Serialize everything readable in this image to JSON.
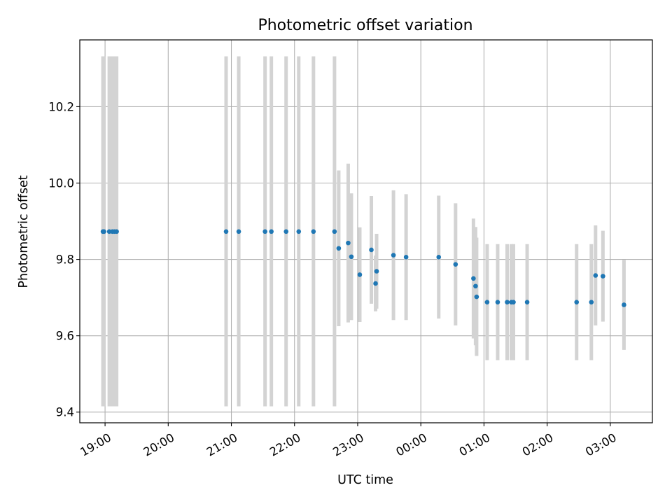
{
  "chart_data": {
    "type": "scatter",
    "title": "Photometric offset variation",
    "xlabel": "UTC time",
    "ylabel": "Photometric offset",
    "grid": true,
    "x_is_time": true,
    "x_range": [
      "18:36",
      "03:40"
    ],
    "ylim": [
      9.372,
      10.375
    ],
    "x_ticks": [
      "19:00",
      "20:00",
      "21:00",
      "22:00",
      "23:00",
      "00:00",
      "01:00",
      "02:00",
      "03:00"
    ],
    "y_ticks": [
      9.4,
      9.6,
      9.8,
      10.0,
      10.2
    ],
    "y_tick_labels": [
      "9.4",
      "9.6",
      "9.8",
      "10.0",
      "10.2"
    ],
    "colors": {
      "points": "#1f77b4",
      "errorbars": "#d3d3d3",
      "grid": "#b0b0b0"
    },
    "series": [
      {
        "points": [
          {
            "t": "18:58",
            "y": 9.873,
            "lo": 9.415,
            "hi": 10.332
          },
          {
            "t": "18:59",
            "y": 9.873,
            "lo": 9.415,
            "hi": 10.332
          },
          {
            "t": "19:04",
            "y": 9.873,
            "lo": 9.415,
            "hi": 10.332
          },
          {
            "t": "19:07",
            "y": 9.873,
            "lo": 9.415,
            "hi": 10.332
          },
          {
            "t": "19:09",
            "y": 9.873,
            "lo": 9.415,
            "hi": 10.332
          },
          {
            "t": "19:11",
            "y": 9.873,
            "lo": 9.415,
            "hi": 10.332
          },
          {
            "t": "20:55",
            "y": 9.873,
            "lo": 9.415,
            "hi": 10.332
          },
          {
            "t": "21:07",
            "y": 9.873,
            "lo": 9.415,
            "hi": 10.332
          },
          {
            "t": "21:32",
            "y": 9.873,
            "lo": 9.415,
            "hi": 10.332
          },
          {
            "t": "21:38",
            "y": 9.873,
            "lo": 9.415,
            "hi": 10.332
          },
          {
            "t": "21:52",
            "y": 9.873,
            "lo": 9.415,
            "hi": 10.332
          },
          {
            "t": "22:04",
            "y": 9.873,
            "lo": 9.415,
            "hi": 10.332
          },
          {
            "t": "22:18",
            "y": 9.873,
            "lo": 9.415,
            "hi": 10.332
          },
          {
            "t": "22:38",
            "y": 9.873,
            "lo": 9.415,
            "hi": 10.332
          },
          {
            "t": "22:42",
            "y": 9.829,
            "lo": 9.625,
            "hi": 10.033
          },
          {
            "t": "22:51",
            "y": 9.843,
            "lo": 9.635,
            "hi": 10.051
          },
          {
            "t": "22:54",
            "y": 9.807,
            "lo": 9.641,
            "hi": 9.973
          },
          {
            "t": "23:02",
            "y": 9.76,
            "lo": 9.636,
            "hi": 9.884
          },
          {
            "t": "23:13",
            "y": 9.825,
            "lo": 9.684,
            "hi": 9.966
          },
          {
            "t": "23:17",
            "y": 9.737,
            "lo": 9.664,
            "hi": 9.81
          },
          {
            "t": "23:18",
            "y": 9.769,
            "lo": 9.671,
            "hi": 9.867
          },
          {
            "t": "23:34",
            "y": 9.811,
            "lo": 9.641,
            "hi": 9.981
          },
          {
            "t": "23:46",
            "y": 9.806,
            "lo": 9.641,
            "hi": 9.971
          },
          {
            "t": "00:17",
            "y": 9.806,
            "lo": 9.645,
            "hi": 9.967
          },
          {
            "t": "00:33",
            "y": 9.787,
            "lo": 9.627,
            "hi": 9.947
          },
          {
            "t": "00:50",
            "y": 9.75,
            "lo": 9.593,
            "hi": 9.907
          },
          {
            "t": "00:52",
            "y": 9.73,
            "lo": 9.575,
            "hi": 9.885
          },
          {
            "t": "00:53",
            "y": 9.702,
            "lo": 9.547,
            "hi": 9.857
          },
          {
            "t": "01:03",
            "y": 9.688,
            "lo": 9.536,
            "hi": 9.84
          },
          {
            "t": "01:13",
            "y": 9.688,
            "lo": 9.536,
            "hi": 9.84
          },
          {
            "t": "01:22",
            "y": 9.688,
            "lo": 9.536,
            "hi": 9.84
          },
          {
            "t": "01:26",
            "y": 9.688,
            "lo": 9.536,
            "hi": 9.84
          },
          {
            "t": "01:28",
            "y": 9.688,
            "lo": 9.536,
            "hi": 9.84
          },
          {
            "t": "01:41",
            "y": 9.688,
            "lo": 9.536,
            "hi": 9.84
          },
          {
            "t": "02:28",
            "y": 9.688,
            "lo": 9.536,
            "hi": 9.84
          },
          {
            "t": "02:42",
            "y": 9.688,
            "lo": 9.536,
            "hi": 9.84
          },
          {
            "t": "02:46",
            "y": 9.758,
            "lo": 9.627,
            "hi": 9.889
          },
          {
            "t": "02:53",
            "y": 9.756,
            "lo": 9.637,
            "hi": 9.875
          },
          {
            "t": "03:13",
            "y": 9.681,
            "lo": 9.563,
            "hi": 9.799
          }
        ]
      }
    ]
  }
}
